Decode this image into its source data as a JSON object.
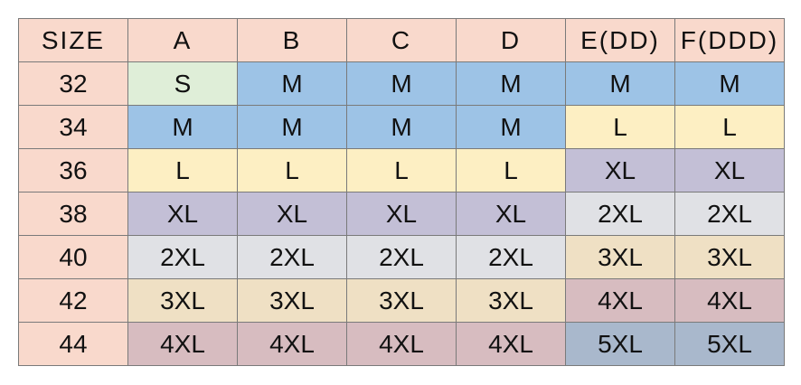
{
  "table": {
    "header": [
      "SIZE",
      "A",
      "B",
      "C",
      "D",
      "E(DD)",
      "F(DDD)"
    ],
    "rows": [
      [
        "32",
        "S",
        "M",
        "M",
        "M",
        "M",
        "M"
      ],
      [
        "34",
        "M",
        "M",
        "M",
        "M",
        "L",
        "L"
      ],
      [
        "36",
        "L",
        "L",
        "L",
        "L",
        "XL",
        "XL"
      ],
      [
        "38",
        "XL",
        "XL",
        "XL",
        "XL",
        "2XL",
        "2XL"
      ],
      [
        "40",
        "2XL",
        "2XL",
        "2XL",
        "2XL",
        "3XL",
        "3XL"
      ],
      [
        "42",
        "3XL",
        "3XL",
        "3XL",
        "3XL",
        "4XL",
        "4XL"
      ],
      [
        "44",
        "4XL",
        "4XL",
        "4XL",
        "4XL",
        "5XL",
        "5XL"
      ]
    ]
  }
}
